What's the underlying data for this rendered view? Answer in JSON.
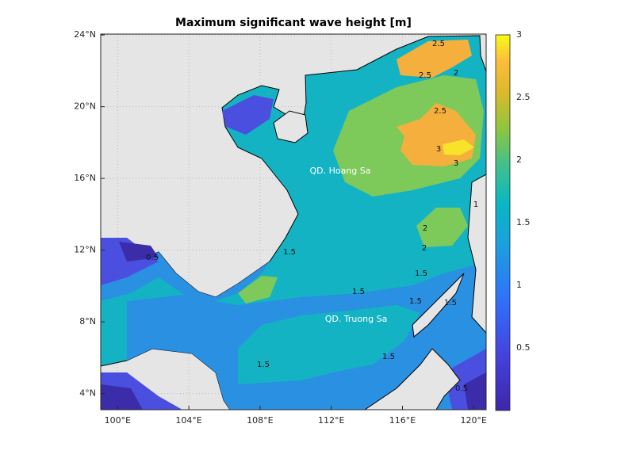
{
  "title": "Maximum significant wave height [m]",
  "map": {
    "xlim": [
      99.05,
      120.7
    ],
    "ylim": [
      3.1,
      24.05
    ],
    "grid": true,
    "xticks": [
      {
        "value": 100,
        "label": "100°E"
      },
      {
        "value": 104,
        "label": "104°E"
      },
      {
        "value": 108,
        "label": "108°E"
      },
      {
        "value": 112,
        "label": "112°E"
      },
      {
        "value": 116,
        "label": "116°E"
      },
      {
        "value": 120,
        "label": "120°E"
      }
    ],
    "yticks": [
      {
        "value": 4,
        "label": "4°N"
      },
      {
        "value": 8,
        "label": "8°N"
      },
      {
        "value": 12,
        "label": "12°N"
      },
      {
        "value": 16,
        "label": "16°N"
      },
      {
        "value": 20,
        "label": "20°N"
      },
      {
        "value": 24,
        "label": "24°N"
      }
    ],
    "annotations": [
      "QD. Hoang Sa",
      "QD. Truong Sa"
    ],
    "contour_labels": [
      "2.5",
      "2",
      "2.5",
      "2.5",
      "3",
      "3",
      "2",
      "2",
      "1.5",
      "1.5",
      "1.5",
      "1.5",
      "1.5",
      "1.5",
      "0.5",
      "1",
      "1.5",
      "0.5"
    ]
  },
  "colorbar": {
    "clim": [
      0,
      3
    ],
    "ticks": [
      0.5,
      1,
      1.5,
      2,
      2.5,
      3
    ]
  }
}
